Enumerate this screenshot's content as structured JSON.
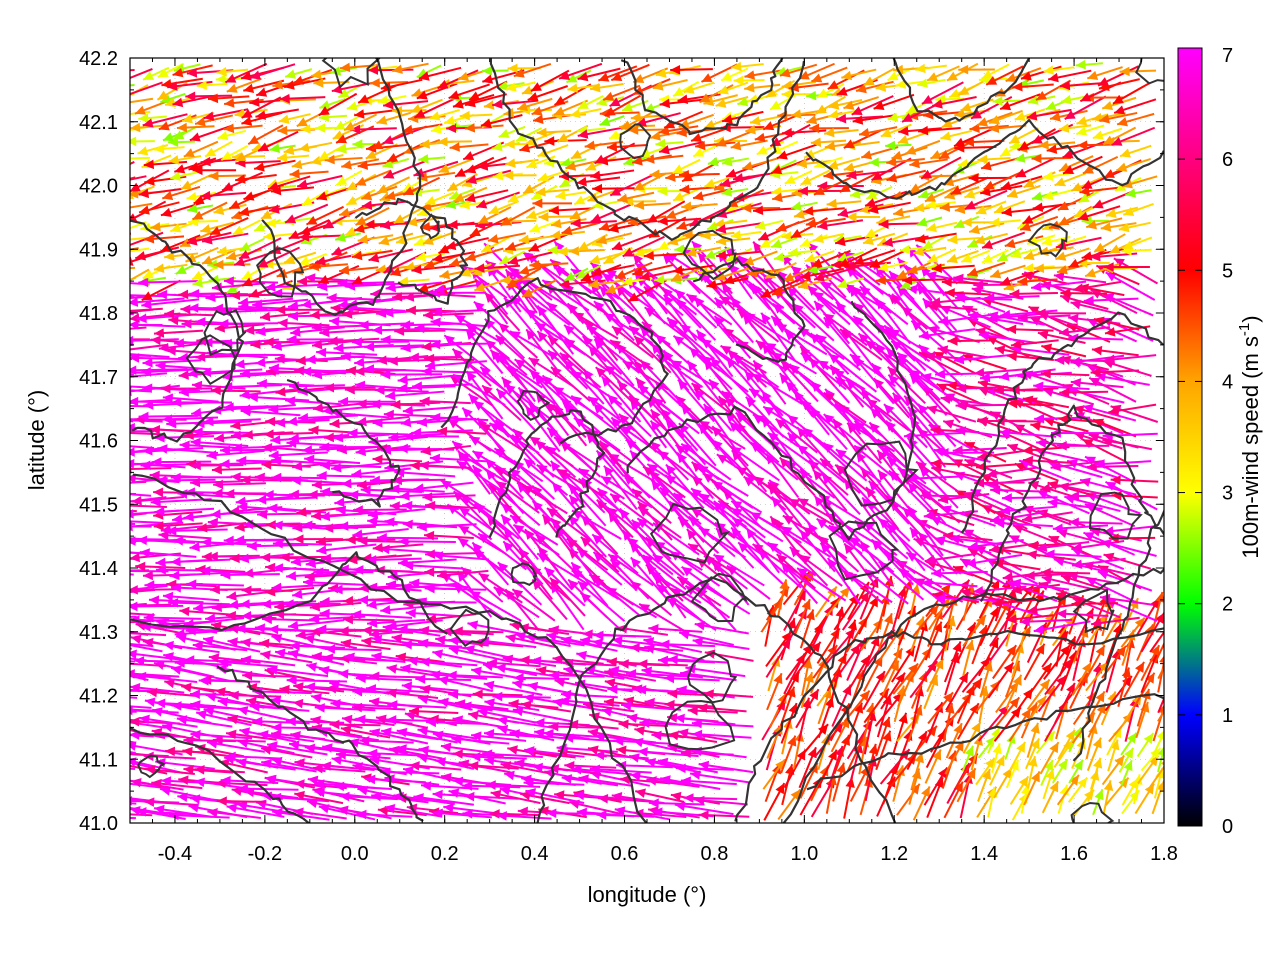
{
  "chart_data": {
    "type": "vector-field",
    "xlabel": "longitude (°)",
    "ylabel": "latitude (°)",
    "xlim": [
      -0.5,
      1.8
    ],
    "ylim": [
      41.0,
      42.2
    ],
    "x_ticks": [
      "-0.4",
      "-0.2",
      "0.0",
      "0.2",
      "0.4",
      "0.6",
      "0.8",
      "1.0",
      "1.2",
      "1.4",
      "1.6",
      "1.8"
    ],
    "x_tick_values": [
      -0.4,
      -0.2,
      0.0,
      0.2,
      0.4,
      0.6,
      0.8,
      1.0,
      1.2,
      1.4,
      1.6,
      1.8
    ],
    "y_ticks": [
      "41.0",
      "41.1",
      "41.2",
      "41.3",
      "41.4",
      "41.5",
      "41.6",
      "41.7",
      "41.8",
      "41.9",
      "42.0",
      "42.1",
      "42.2"
    ],
    "y_tick_values": [
      41.0,
      41.1,
      41.2,
      41.3,
      41.4,
      41.5,
      41.6,
      41.7,
      41.8,
      41.9,
      42.0,
      42.1,
      42.2
    ],
    "grid": "dotted",
    "colorbar": {
      "label_base": "100m-wind speed (m s",
      "label_sup": "-1",
      "label_close": ")",
      "range": [
        0,
        7
      ],
      "ticks": [
        "0",
        "1",
        "2",
        "3",
        "4",
        "5",
        "6",
        "7"
      ],
      "tick_values": [
        0,
        1,
        2,
        3,
        4,
        5,
        6,
        7
      ],
      "colors": [
        "#000000",
        "#0000ff",
        "#00ff00",
        "#ffff00",
        "#ffa500",
        "#ff0000",
        "#ff00ff"
      ],
      "placement": "right"
    },
    "wind_field": {
      "description_of_regions": [
        {
          "region": "north (lat > 41.85)",
          "speed_ms": 3.5,
          "direction": "westward, slightly south"
        },
        {
          "region": "west-central to south-west",
          "speed_ms": 7.0,
          "direction": "westward"
        },
        {
          "region": "central (lon 0.3-1.3, lat 41.3-41.8)",
          "speed_ms": 7.0,
          "direction": "north-west"
        },
        {
          "region": "south-east (lon > 0.9, lat < 41.35)",
          "speed_ms": 4.5,
          "direction": "north-east"
        }
      ]
    },
    "contours": {
      "color": "#333333",
      "description": "terrain elevation contours"
    }
  }
}
